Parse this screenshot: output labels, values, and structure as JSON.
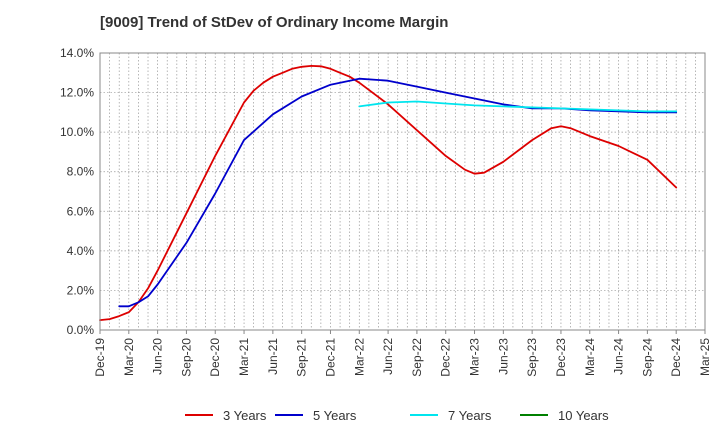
{
  "chart_data": {
    "type": "line",
    "title": "[9009]  Trend of StDev of Ordinary Income Margin",
    "xlabel": "",
    "ylabel": "",
    "ylim": [
      0,
      14
    ],
    "y_ticks": [
      "0.0%",
      "2.0%",
      "4.0%",
      "6.0%",
      "8.0%",
      "10.0%",
      "12.0%",
      "14.0%"
    ],
    "x_ticks": [
      "Dec-19",
      "Mar-20",
      "Jun-20",
      "Sep-20",
      "Dec-20",
      "Mar-21",
      "Jun-21",
      "Sep-21",
      "Dec-21",
      "Mar-22",
      "Jun-22",
      "Sep-22",
      "Dec-22",
      "Mar-23",
      "Jun-23",
      "Sep-23",
      "Dec-23",
      "Mar-24",
      "Jun-24",
      "Sep-24",
      "Dec-24",
      "Mar-25"
    ],
    "grid": true,
    "legend_position": "bottom",
    "series": [
      {
        "name": "3 Years",
        "color": "#dd0000",
        "points": [
          [
            "Dec-19",
            0.5
          ],
          [
            "Jan-20",
            0.55
          ],
          [
            "Feb-20",
            0.7
          ],
          [
            "Mar-20",
            0.9
          ],
          [
            "Apr-20",
            1.4
          ],
          [
            "May-20",
            2.1
          ],
          [
            "Jun-20",
            3.0
          ],
          [
            "Sep-20",
            5.9
          ],
          [
            "Dec-20",
            8.8
          ],
          [
            "Mar-21",
            11.5
          ],
          [
            "Apr-21",
            12.1
          ],
          [
            "May-21",
            12.5
          ],
          [
            "Jun-21",
            12.8
          ],
          [
            "Jul-21",
            13.0
          ],
          [
            "Aug-21",
            13.2
          ],
          [
            "Sep-21",
            13.3
          ],
          [
            "Oct-21",
            13.35
          ],
          [
            "Nov-21",
            13.33
          ],
          [
            "Dec-21",
            13.2
          ],
          [
            "Jan-22",
            13.0
          ],
          [
            "Feb-22",
            12.8
          ],
          [
            "Mar-22",
            12.5
          ],
          [
            "Jun-22",
            11.4
          ],
          [
            "Sep-22",
            10.1
          ],
          [
            "Dec-22",
            8.8
          ],
          [
            "Feb-23",
            8.1
          ],
          [
            "Mar-23",
            7.9
          ],
          [
            "Apr-23",
            7.95
          ],
          [
            "Jun-23",
            8.5
          ],
          [
            "Sep-23",
            9.6
          ],
          [
            "Nov-23",
            10.2
          ],
          [
            "Dec-23",
            10.3
          ],
          [
            "Jan-24",
            10.2
          ],
          [
            "Mar-24",
            9.8
          ],
          [
            "Jun-24",
            9.3
          ],
          [
            "Sep-24",
            8.6
          ],
          [
            "Dec-24",
            7.2
          ]
        ]
      },
      {
        "name": "5 Years",
        "color": "#0000cc",
        "points": [
          [
            "Feb-20",
            1.2
          ],
          [
            "Mar-20",
            1.2
          ],
          [
            "Apr-20",
            1.4
          ],
          [
            "May-20",
            1.7
          ],
          [
            "Jun-20",
            2.3
          ],
          [
            "Sep-20",
            4.4
          ],
          [
            "Dec-20",
            6.9
          ],
          [
            "Mar-21",
            9.6
          ],
          [
            "Jun-21",
            10.9
          ],
          [
            "Sep-21",
            11.8
          ],
          [
            "Dec-21",
            12.4
          ],
          [
            "Mar-22",
            12.7
          ],
          [
            "Jun-22",
            12.6
          ],
          [
            "Sep-22",
            12.3
          ],
          [
            "Dec-22",
            12.0
          ],
          [
            "Mar-23",
            11.7
          ],
          [
            "Jun-23",
            11.4
          ],
          [
            "Sep-23",
            11.2
          ],
          [
            "Dec-23",
            11.2
          ],
          [
            "Mar-24",
            11.1
          ],
          [
            "Jun-24",
            11.05
          ],
          [
            "Sep-24",
            11.0
          ],
          [
            "Dec-24",
            11.0
          ]
        ]
      },
      {
        "name": "7 Years",
        "color": "#00e5ee",
        "points": [
          [
            "Mar-22",
            11.3
          ],
          [
            "Jun-22",
            11.5
          ],
          [
            "Sep-22",
            11.55
          ],
          [
            "Dec-22",
            11.45
          ],
          [
            "Mar-23",
            11.35
          ],
          [
            "Jun-23",
            11.3
          ],
          [
            "Sep-23",
            11.25
          ],
          [
            "Dec-23",
            11.2
          ],
          [
            "Mar-24",
            11.15
          ],
          [
            "Jun-24",
            11.1
          ],
          [
            "Sep-24",
            11.05
          ],
          [
            "Dec-24",
            11.05
          ]
        ]
      },
      {
        "name": "10 Years",
        "color": "#008000",
        "points": []
      }
    ]
  }
}
